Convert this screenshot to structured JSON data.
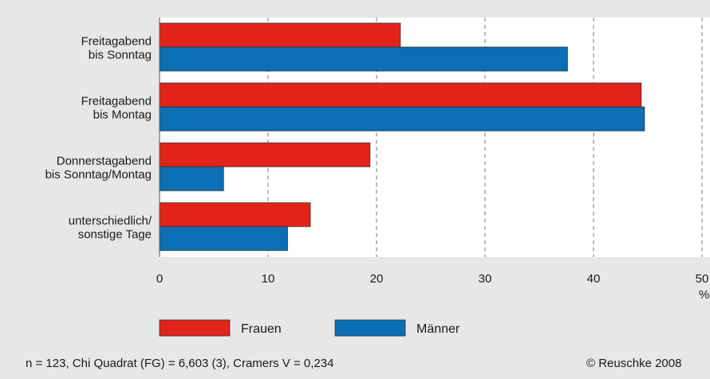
{
  "chart_data": {
    "type": "bar",
    "orientation": "horizontal",
    "categories": [
      [
        "Freitagabend",
        "bis Sonntag"
      ],
      [
        "Freitagabend",
        "bis Montag"
      ],
      [
        "Donnerstagabend",
        "bis Sonntag/Montag"
      ],
      [
        "unterschiedlich/",
        "sonstige Tage"
      ]
    ],
    "series": [
      {
        "name": "Frauen",
        "color": "#e2231a",
        "values": [
          22.2,
          44.4,
          19.4,
          13.9
        ]
      },
      {
        "name": "Männer",
        "color": "#0a6fb4",
        "values": [
          37.6,
          44.7,
          5.9,
          11.8
        ]
      }
    ],
    "xlim": [
      0,
      50
    ],
    "xticks": [
      "0",
      "10",
      "20",
      "30",
      "40",
      "50"
    ],
    "xunit": "%",
    "grid": "vertical dashed",
    "legend_position": "bottom"
  },
  "footer": {
    "stats": "n = 123, Chi Quadrat (FG) = 6,603 (3), Cramers V = 0,234",
    "copyright": "© Reuschke 2008"
  }
}
